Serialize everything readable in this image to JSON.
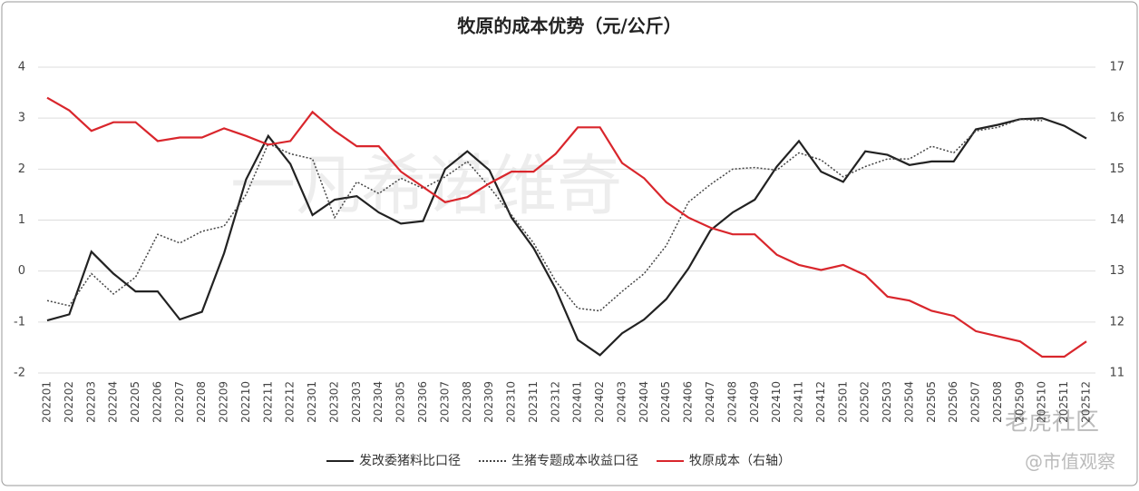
{
  "chart_data": {
    "type": "line",
    "title": "牧原的成本优势（元/公斤）",
    "categories": [
      "202201",
      "202202",
      "202203",
      "202204",
      "202205",
      "202206",
      "202207",
      "202208",
      "202209",
      "202210",
      "202211",
      "202212",
      "202301",
      "202302",
      "202303",
      "202304",
      "202305",
      "202306",
      "202307",
      "202308",
      "202309",
      "202310",
      "202311",
      "202312",
      "202401",
      "202402",
      "202403",
      "202404",
      "202405",
      "202406",
      "202407",
      "202408",
      "202409",
      "202410",
      "202411",
      "202412",
      "202501",
      "202502",
      "202503",
      "202504",
      "202505",
      "202506",
      "202507",
      "202508",
      "202509",
      "202510",
      "202511",
      "202512"
    ],
    "series": [
      {
        "name": "发改委猪料比口径",
        "color": "#222222",
        "dash": "solid",
        "values": [
          -0.97,
          -0.85,
          0.38,
          -0.05,
          -0.4,
          -0.4,
          -0.95,
          -0.8,
          0.35,
          1.8,
          2.65,
          2.1,
          1.1,
          1.4,
          1.47,
          1.15,
          0.93,
          0.98,
          2.0,
          2.35,
          1.98,
          1.05,
          0.45,
          -0.35,
          -1.35,
          -1.65,
          -1.22,
          -0.95,
          -0.55,
          0.05,
          0.8,
          1.15,
          1.4,
          2.05,
          2.55,
          1.95,
          1.75,
          2.35,
          2.28,
          2.08,
          2.15,
          2.15,
          2.78,
          2.87,
          2.98,
          3.0,
          2.85,
          2.6
        ]
      },
      {
        "name": "生猪专题成本收益口径",
        "color": "#444444",
        "dash": "dotted",
        "values": [
          -0.58,
          -0.68,
          -0.05,
          -0.45,
          -0.12,
          0.72,
          0.55,
          0.78,
          0.88,
          1.5,
          2.5,
          2.3,
          2.2,
          1.05,
          1.75,
          1.52,
          1.82,
          1.62,
          1.85,
          2.15,
          1.65,
          1.1,
          0.55,
          -0.2,
          -0.73,
          -0.78,
          -0.4,
          -0.05,
          0.5,
          1.35,
          1.7,
          2.0,
          2.03,
          1.98,
          2.32,
          2.18,
          1.85,
          2.05,
          2.2,
          2.2,
          2.45,
          2.32,
          2.75,
          2.82,
          2.98,
          2.95,
          null,
          null
        ]
      },
      {
        "name": "牧原成本（右轴）",
        "color": "#d9262c",
        "dash": "solid",
        "axis": "y2",
        "values": [
          16.4,
          16.15,
          15.75,
          15.92,
          15.92,
          15.55,
          15.62,
          15.62,
          15.8,
          15.65,
          15.48,
          15.55,
          16.12,
          15.75,
          15.45,
          15.45,
          14.95,
          14.65,
          14.35,
          14.45,
          14.72,
          14.95,
          14.95,
          15.3,
          15.82,
          15.82,
          15.12,
          14.82,
          14.35,
          14.05,
          13.85,
          13.72,
          13.72,
          13.32,
          13.12,
          13.02,
          13.12,
          12.92,
          12.5,
          12.42,
          12.22,
          12.12,
          11.82,
          11.72,
          11.62,
          11.32,
          11.32,
          11.62
        ]
      }
    ],
    "ylim": [
      -2,
      4
    ],
    "yticks": [
      -2,
      -1,
      0,
      1,
      2,
      3,
      4
    ],
    "y2lim": [
      11,
      17
    ],
    "y2ticks": [
      11,
      12,
      13,
      14,
      15,
      16,
      17
    ],
    "grid": true,
    "legend": "bottom",
    "watermarks": [
      "一凡希诺维奇",
      "老虎社区",
      "@市值观察"
    ]
  }
}
